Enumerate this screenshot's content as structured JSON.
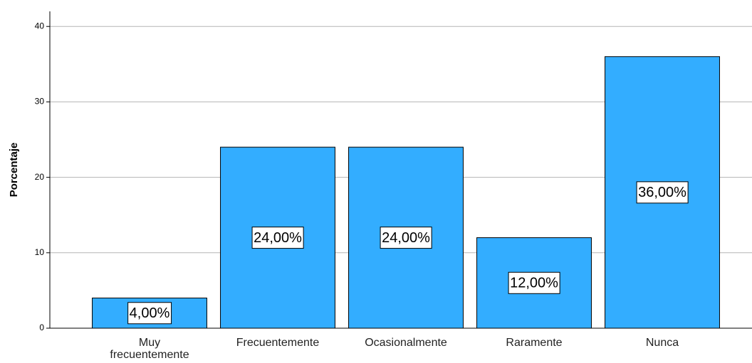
{
  "chart_data": {
    "type": "bar",
    "y_label": "Porcentaje",
    "categories": [
      "Muy frecuentemente",
      "Frecuentemente",
      "Ocasionalmente",
      "Raramente",
      "Nunca"
    ],
    "values": [
      4,
      24,
      24,
      12,
      36
    ],
    "value_labels": [
      "4,00%",
      "24,00%",
      "24,00%",
      "12,00%",
      "36,00%"
    ],
    "color": "#33adff",
    "ylim": [
      0,
      42
    ],
    "yticks": [
      0,
      10,
      20,
      30,
      40
    ],
    "grid": true
  }
}
